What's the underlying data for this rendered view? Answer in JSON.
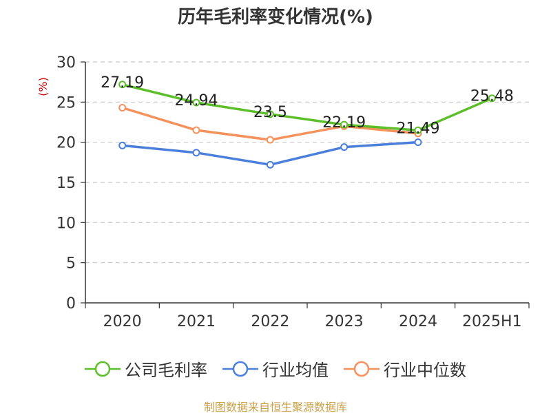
{
  "title": "历年毛利率变化情况(%)",
  "source": "制图数据来自恒生聚源数据库",
  "colors": {
    "公司毛利率": "#5cbf2a",
    "行业均值": "#4a7fdc",
    "行业中位数": "#f5915a",
    "ylabel": "#cc0000"
  },
  "chart_data": {
    "type": "line",
    "title": "历年毛利率变化情况(%)",
    "ylabel": "(%)",
    "xlabel": "",
    "categories": [
      "2020",
      "2021",
      "2022",
      "2023",
      "2024",
      "2025H1"
    ],
    "ylim": [
      0,
      30
    ],
    "yticks": [
      0,
      5,
      10,
      15,
      20,
      25,
      30
    ],
    "grid": true,
    "legend_position": "bottom",
    "series": [
      {
        "name": "公司毛利率",
        "values": [
          27.19,
          24.94,
          23.5,
          22.19,
          21.49,
          25.48
        ],
        "labels": [
          "27.19",
          "24.94",
          "23.5",
          "22.19",
          "21.49",
          "25.48"
        ]
      },
      {
        "name": "行业均值",
        "values": [
          19.6,
          18.7,
          17.2,
          19.4,
          20.0,
          null
        ]
      },
      {
        "name": "行业中位数",
        "values": [
          24.3,
          21.5,
          20.3,
          22.0,
          21.1,
          null
        ]
      }
    ]
  }
}
